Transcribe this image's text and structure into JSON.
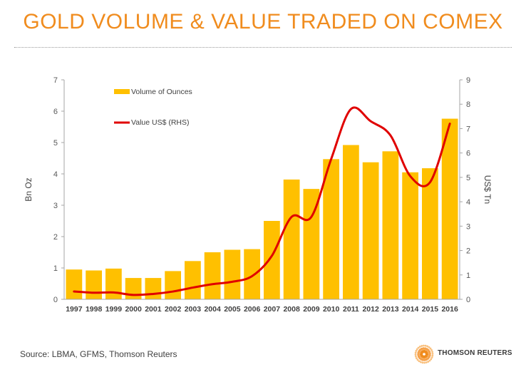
{
  "title": "GOLD VOLUME & VALUE TRADED ON COMEX",
  "source": "Source: LBMA, GFMS, Thomson Reuters",
  "brand": {
    "name": "THOMSON REUTERS"
  },
  "colors": {
    "title": "#f08c1e",
    "bar": "#ffc000",
    "line": "#e00000"
  },
  "chart_data": {
    "type": "bar",
    "categories": [
      "1997",
      "1998",
      "1999",
      "2000",
      "2001",
      "2002",
      "2003",
      "2004",
      "2005",
      "2006",
      "2007",
      "2008",
      "2009",
      "2010",
      "2011",
      "2012",
      "2013",
      "2014",
      "2015",
      "2016"
    ],
    "ylabel": "Bn Oz",
    "y2label": "US$ Tn",
    "ylim": [
      0,
      7
    ],
    "y2lim": [
      0,
      9
    ],
    "yticks": [
      "0",
      "1",
      "2",
      "3",
      "4",
      "5",
      "6",
      "7"
    ],
    "y2ticks": [
      "0",
      "1",
      "2",
      "3",
      "4",
      "5",
      "6",
      "7",
      "8",
      "9"
    ],
    "grid": false,
    "legend_position": "top-left",
    "series": [
      {
        "name": "Volume of Ounces",
        "kind": "bar",
        "axis": "left",
        "values": [
          0.95,
          0.92,
          0.98,
          0.68,
          0.68,
          0.9,
          1.22,
          1.5,
          1.58,
          1.6,
          2.5,
          3.82,
          3.52,
          4.47,
          4.92,
          4.37,
          4.72,
          4.05,
          4.18,
          5.76
        ]
      },
      {
        "name": "Value US$ (RHS)",
        "kind": "line",
        "axis": "right",
        "values": [
          0.32,
          0.27,
          0.28,
          0.18,
          0.22,
          0.32,
          0.48,
          0.62,
          0.72,
          0.95,
          1.78,
          3.38,
          3.38,
          5.75,
          7.8,
          7.3,
          6.72,
          5.05,
          4.8,
          7.2
        ]
      }
    ]
  }
}
